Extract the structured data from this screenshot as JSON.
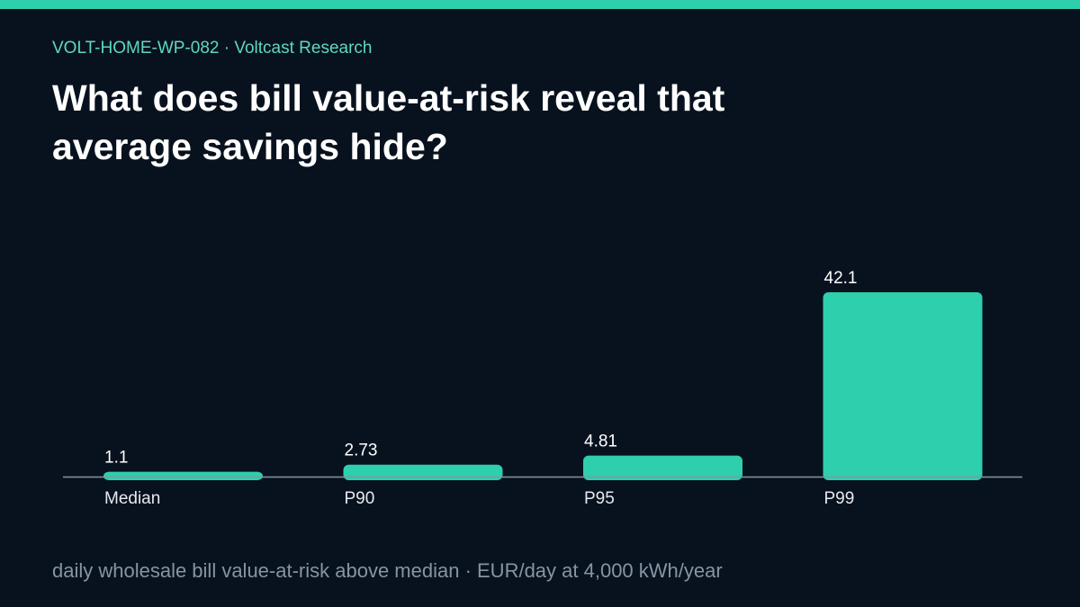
{
  "header": {
    "kicker": "VOLT-HOME-WP-082 · Voltcast Research",
    "title": "What does bill value-at-risk reveal that average savings hide?"
  },
  "colors": {
    "accent": "#2ecfac",
    "background": "#08121e",
    "axis": "#8794a3"
  },
  "chart_data": {
    "type": "bar",
    "categories": [
      "Median",
      "P90",
      "P95",
      "P99"
    ],
    "values": [
      1.1,
      2.73,
      4.81,
      42.1
    ],
    "value_labels": [
      "1.1",
      "2.73",
      "4.81",
      "42.1"
    ],
    "grid": false,
    "legend": "none"
  },
  "footnote": "daily wholesale bill value-at-risk above median · EUR/day at 4,000 kWh/year"
}
